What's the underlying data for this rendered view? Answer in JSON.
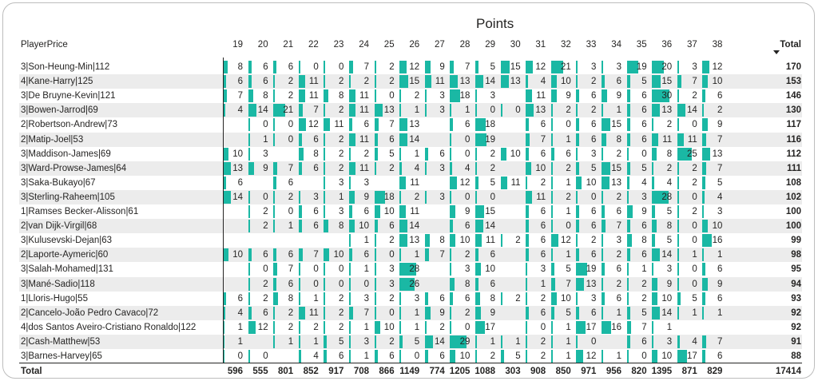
{
  "visual": {
    "title": "Points",
    "row_header": "PlayerPrice",
    "gameweeks": [
      "19",
      "20",
      "21",
      "22",
      "23",
      "24",
      "25",
      "26",
      "27",
      "28",
      "29",
      "30",
      "31",
      "32",
      "33",
      "34",
      "35",
      "36",
      "37",
      "38"
    ],
    "total_header": "Total",
    "bar_color": "#1ab8a4",
    "sort_indicator": "sort-descending-icon",
    "rows": [
      {
        "name": "3|Son-Heung-Min|112",
        "points": [
          8,
          6,
          6,
          0,
          0,
          7,
          2,
          12,
          9,
          7,
          5,
          15,
          12,
          21,
          3,
          3,
          19,
          20,
          3,
          12
        ],
        "total": 170
      },
      {
        "name": "4|Kane-Harry|125",
        "points": [
          6,
          6,
          2,
          11,
          2,
          2,
          2,
          15,
          11,
          13,
          14,
          13,
          4,
          10,
          2,
          6,
          5,
          15,
          7,
          10
        ],
        "total": 153
      },
      {
        "name": "3|De Bruyne-Kevin|121",
        "points": [
          7,
          8,
          2,
          11,
          8,
          11,
          0,
          2,
          3,
          18,
          3,
          null,
          11,
          9,
          6,
          9,
          6,
          30,
          2,
          6
        ],
        "total": 146
      },
      {
        "name": "3|Bowen-Jarrod|69",
        "points": [
          4,
          14,
          21,
          7,
          2,
          11,
          13,
          1,
          3,
          1,
          0,
          0,
          13,
          2,
          2,
          1,
          6,
          13,
          14,
          2
        ],
        "total": 130
      },
      {
        "name": "2|Robertson-Andrew|73",
        "points": [
          null,
          0,
          0,
          12,
          11,
          6,
          7,
          13,
          null,
          6,
          18,
          null,
          6,
          0,
          6,
          15,
          6,
          2,
          0,
          9
        ],
        "total": 117
      },
      {
        "name": "2|Matip-Joel|53",
        "points": [
          null,
          1,
          0,
          6,
          2,
          11,
          6,
          14,
          null,
          0,
          19,
          null,
          7,
          1,
          6,
          8,
          6,
          11,
          11,
          7
        ],
        "total": 116
      },
      {
        "name": "3|Maddison-James|69",
        "points": [
          10,
          3,
          null,
          8,
          2,
          2,
          5,
          1,
          6,
          0,
          2,
          10,
          6,
          6,
          3,
          2,
          0,
          8,
          25,
          13
        ],
        "total": 112
      },
      {
        "name": "3|Ward-Prowse-James|64",
        "points": [
          13,
          9,
          7,
          6,
          2,
          11,
          2,
          4,
          3,
          4,
          2,
          null,
          10,
          2,
          5,
          15,
          5,
          2,
          2,
          7
        ],
        "total": 111
      },
      {
        "name": "3|Saka-Bukayo|67",
        "points": [
          6,
          null,
          6,
          null,
          3,
          3,
          null,
          11,
          null,
          12,
          5,
          11,
          2,
          1,
          10,
          13,
          4,
          4,
          2,
          5
        ],
        "total": 108
      },
      {
        "name": "3|Sterling-Raheem|105",
        "points": [
          14,
          0,
          2,
          3,
          1,
          9,
          18,
          2,
          3,
          0,
          0,
          null,
          11,
          2,
          0,
          2,
          3,
          28,
          0,
          4
        ],
        "total": 102
      },
      {
        "name": "1|Ramses Becker-Alisson|61",
        "points": [
          null,
          2,
          0,
          6,
          3,
          6,
          10,
          11,
          null,
          9,
          15,
          null,
          6,
          1,
          6,
          6,
          9,
          5,
          2,
          3
        ],
        "total": 100
      },
      {
        "name": "2|van Dijk-Virgil|68",
        "points": [
          null,
          2,
          1,
          6,
          8,
          10,
          6,
          14,
          null,
          6,
          14,
          null,
          6,
          0,
          6,
          7,
          6,
          8,
          0,
          10
        ],
        "total": 100
      },
      {
        "name": "3|Kulusevski-Dejan|63",
        "points": [
          null,
          null,
          null,
          null,
          null,
          1,
          2,
          13,
          8,
          10,
          11,
          2,
          6,
          12,
          2,
          3,
          8,
          5,
          0,
          16
        ],
        "total": 99
      },
      {
        "name": "2|Laporte-Aymeric|60",
        "points": [
          10,
          6,
          6,
          7,
          10,
          6,
          0,
          1,
          7,
          2,
          6,
          null,
          6,
          1,
          6,
          2,
          6,
          14,
          1,
          1
        ],
        "total": 98
      },
      {
        "name": "3|Salah-Mohamed|131",
        "points": [
          null,
          0,
          7,
          0,
          0,
          1,
          3,
          28,
          null,
          3,
          10,
          null,
          3,
          5,
          19,
          6,
          1,
          3,
          0,
          6
        ],
        "total": 95
      },
      {
        "name": "3|Mané-Sadio|118",
        "points": [
          null,
          2,
          6,
          0,
          0,
          0,
          3,
          26,
          null,
          8,
          6,
          null,
          1,
          7,
          13,
          2,
          2,
          9,
          0,
          9
        ],
        "total": 94
      },
      {
        "name": "1|Lloris-Hugo|55",
        "points": [
          6,
          2,
          8,
          1,
          2,
          3,
          2,
          3,
          6,
          6,
          8,
          2,
          2,
          10,
          3,
          6,
          2,
          10,
          5,
          6
        ],
        "total": 93
      },
      {
        "name": "2|Cancelo-João Pedro Cavaco|72",
        "points": [
          4,
          6,
          2,
          11,
          2,
          7,
          0,
          1,
          9,
          2,
          9,
          null,
          6,
          5,
          6,
          1,
          5,
          14,
          1,
          1
        ],
        "total": 92
      },
      {
        "name": "4|dos Santos Aveiro-Cristiano Ronaldo|122",
        "points": [
          1,
          12,
          2,
          2,
          2,
          1,
          10,
          1,
          2,
          0,
          17,
          null,
          0,
          1,
          17,
          16,
          7,
          1,
          null,
          null
        ],
        "total": 92
      },
      {
        "name": "2|Cash-Matthew|53",
        "points": [
          1,
          null,
          1,
          1,
          5,
          3,
          2,
          5,
          14,
          29,
          1,
          1,
          2,
          1,
          0,
          null,
          6,
          3,
          4,
          7
        ],
        "total": 91
      },
      {
        "name": "3|Barnes-Harvey|65",
        "points": [
          0,
          0,
          null,
          4,
          6,
          1,
          6,
          0,
          6,
          10,
          2,
          5,
          2,
          1,
          12,
          1,
          0,
          10,
          17,
          6
        ],
        "total": 88
      }
    ],
    "totals_label": "Total",
    "column_totals": [
      "596",
      "555",
      "801",
      "852",
      "917",
      "708",
      "866",
      "1149",
      "774",
      "1205",
      "1088",
      "303",
      "908",
      "850",
      "971",
      "956",
      "820",
      "1395",
      "871",
      "829"
    ],
    "grand_total": "17414"
  }
}
